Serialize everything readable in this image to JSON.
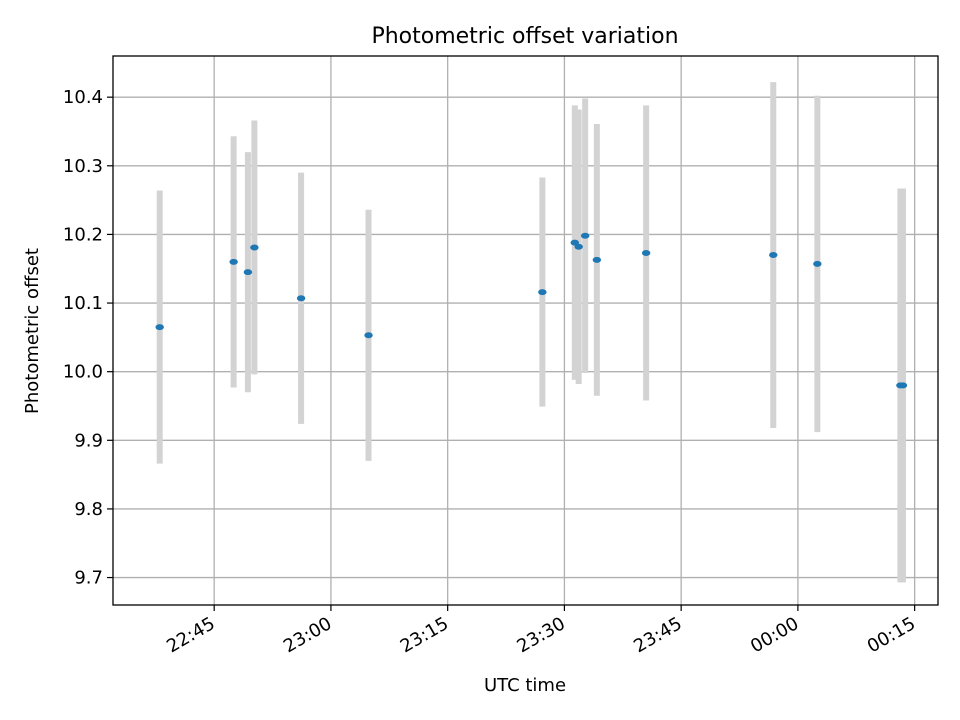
{
  "chart_data": {
    "type": "scatter",
    "title": "Photometric offset variation",
    "xlabel": "UTC time",
    "ylabel": "Photometric offset",
    "x_ticks": [
      "22:45",
      "23:00",
      "23:15",
      "23:30",
      "23:45",
      "00:00",
      "00:15"
    ],
    "y_ticks": [
      "9.7",
      "9.8",
      "9.9",
      "10.0",
      "10.1",
      "10.2",
      "10.3",
      "10.4"
    ],
    "xlim": [
      "22:32",
      "00:18"
    ],
    "ylim": [
      9.66,
      10.46
    ],
    "grid": true,
    "errorbar_color": "#d3d3d3",
    "marker_color": "#1f77b4",
    "series": [
      {
        "points": [
          {
            "x": "22:38:00",
            "y": 10.065,
            "err": 0.199
          },
          {
            "x": "22:47:30",
            "y": 10.16,
            "err": 0.183
          },
          {
            "x": "22:49:20",
            "y": 10.145,
            "err": 0.175
          },
          {
            "x": "22:50:10",
            "y": 10.181,
            "err": 0.185
          },
          {
            "x": "22:56:10",
            "y": 10.107,
            "err": 0.183
          },
          {
            "x": "23:04:50",
            "y": 10.053,
            "err": 0.183
          },
          {
            "x": "23:27:10",
            "y": 10.116,
            "err": 0.167
          },
          {
            "x": "23:31:20",
            "y": 10.188,
            "err": 0.2
          },
          {
            "x": "23:31:50",
            "y": 10.182,
            "err": 0.2
          },
          {
            "x": "23:32:40",
            "y": 10.198,
            "err": 0.2
          },
          {
            "x": "23:34:10",
            "y": 10.163,
            "err": 0.198
          },
          {
            "x": "23:40:30",
            "y": 10.173,
            "err": 0.215
          },
          {
            "x": "23:56:50",
            "y": 10.17,
            "err": 0.252
          },
          {
            "x": "00:02:30",
            "y": 10.157,
            "err": 0.245
          },
          {
            "x": "00:13:10",
            "y": 9.98,
            "err": 0.287
          },
          {
            "x": "00:13:30",
            "y": 9.98,
            "err": 0.287
          }
        ]
      }
    ]
  }
}
